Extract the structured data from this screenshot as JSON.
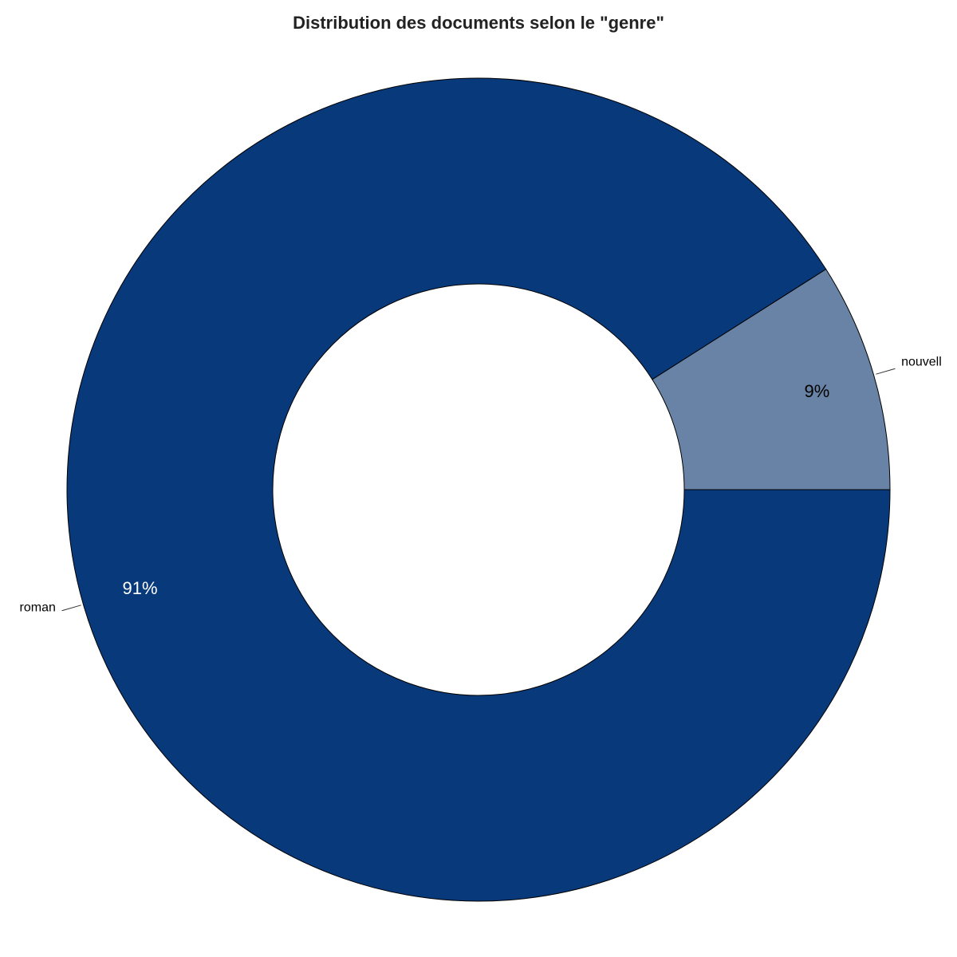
{
  "chart_data": {
    "type": "pie",
    "title": "Distribution des documents selon le \"genre\"",
    "donut": true,
    "categories": [
      "nouvell",
      "roman"
    ],
    "values": [
      9,
      91
    ],
    "percent_labels": [
      "9%",
      "91%"
    ],
    "colors": [
      "#6883a6",
      "#08397b"
    ],
    "label_colors": [
      "#000000",
      "#ffffff"
    ]
  }
}
